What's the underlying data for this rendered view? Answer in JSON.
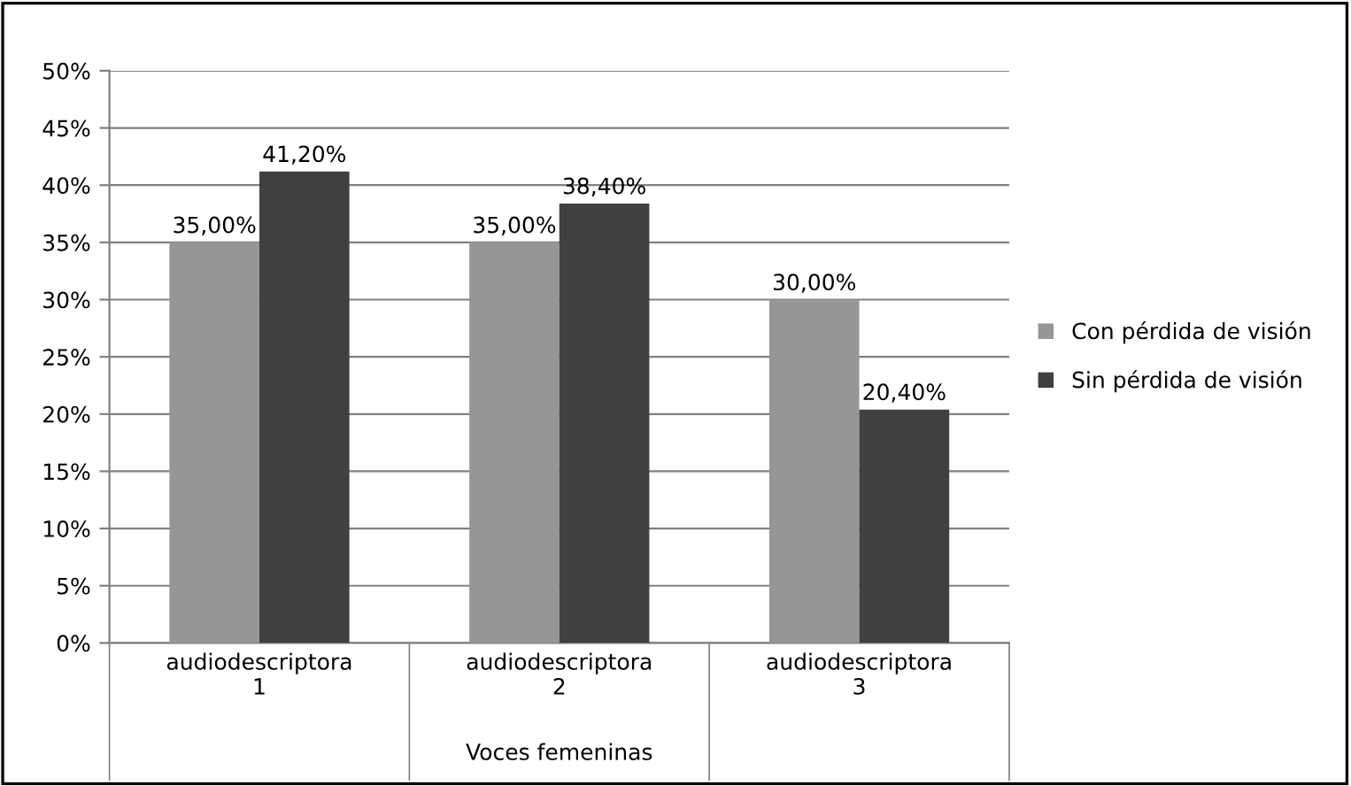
{
  "chart_data": {
    "type": "bar",
    "categories": [
      "audiodescriptora\n1",
      "audiodescriptora\n2",
      "audiodescriptora\n3"
    ],
    "xlabel": "Voces femeninas",
    "series": [
      {
        "name": "Con pérdida de visión",
        "color": "#969696",
        "values": [
          35.0,
          35.0,
          30.0
        ],
        "value_labels": [
          "35,00%",
          "35,00%",
          "30,00%"
        ]
      },
      {
        "name": "Sin pérdida de visión",
        "color": "#404040",
        "values": [
          41.2,
          38.4,
          20.4
        ],
        "value_labels": [
          "41,20%",
          "38,40%",
          "20,40%"
        ]
      }
    ],
    "ylim": [
      0,
      50
    ],
    "yticks": [
      {
        "value": 0,
        "label": "0%"
      },
      {
        "value": 5,
        "label": "5%"
      },
      {
        "value": 10,
        "label": "10%"
      },
      {
        "value": 15,
        "label": "15%"
      },
      {
        "value": 20,
        "label": "20%"
      },
      {
        "value": 25,
        "label": "25%"
      },
      {
        "value": 30,
        "label": "30%"
      },
      {
        "value": 35,
        "label": "35%"
      },
      {
        "value": 40,
        "label": "40%"
      },
      {
        "value": 45,
        "label": "45%"
      },
      {
        "value": 50,
        "label": "50%"
      }
    ],
    "grid": "y",
    "legend": "right"
  }
}
